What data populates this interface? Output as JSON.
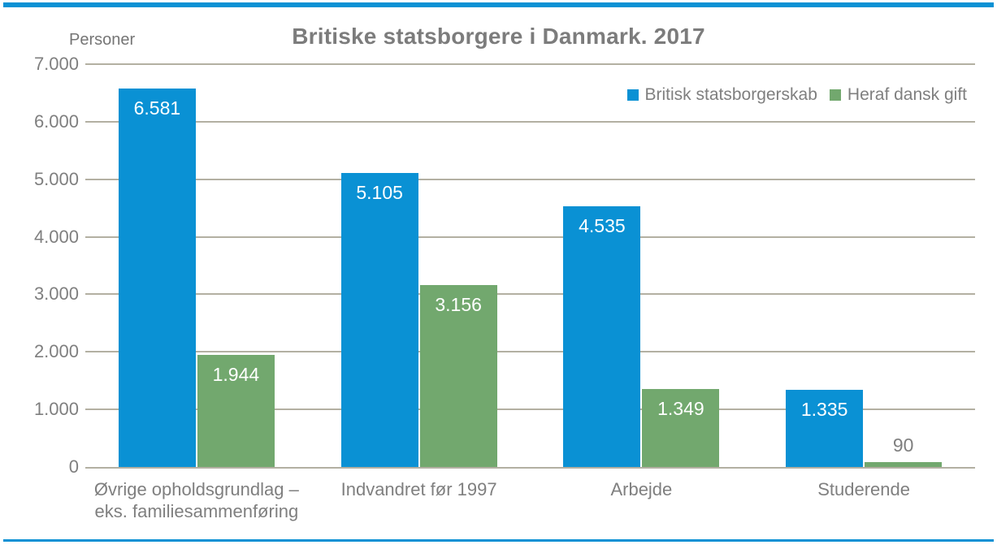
{
  "chart_data": {
    "type": "bar",
    "title": "Britiske statsborgere i Danmark. 2017",
    "ylabel": "Personer",
    "xlabel": "",
    "ylim": [
      0,
      7000
    ],
    "ytick_interval": 1000,
    "yticks": [
      "7.000",
      "6.000",
      "5.000",
      "4.000",
      "3.000",
      "2.000",
      "1.000",
      "0"
    ],
    "grid": "horizontal",
    "legend_position": "top-right",
    "categories": [
      "Øvrige opholdsgrundlag –\neks. familiesammenføring",
      "Indvandret før 1997",
      "Arbejde",
      "Studerende"
    ],
    "series": [
      {
        "name": "Britisk statsborgerskab",
        "color": "#0a91d4",
        "values": [
          6581,
          5105,
          4535,
          1335
        ],
        "value_labels": [
          "6.581",
          "5.105",
          "4.535",
          "1.335"
        ]
      },
      {
        "name": "Heraf dansk gift",
        "color": "#72a86e",
        "values": [
          1944,
          3156,
          1349,
          90
        ],
        "value_labels": [
          "1.944",
          "3.156",
          "1.349",
          "90"
        ]
      }
    ]
  },
  "colors": {
    "accent_rule": "#0a91d4",
    "gridline": "#b3b0a2",
    "axis_text": "#7f7f7f",
    "title_text": "#7c7c7c",
    "bar_label_inside": "#ffffff"
  }
}
